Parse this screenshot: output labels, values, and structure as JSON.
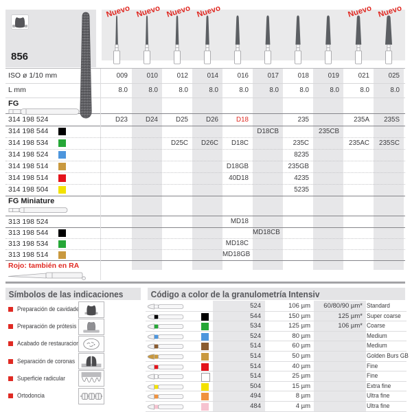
{
  "header": {
    "figure_number": "856",
    "tool_icon": "crown-prep-icon",
    "new_badge": {
      "label": "Nuevo",
      "columns": [
        0,
        1,
        2,
        3,
        8,
        9
      ]
    }
  },
  "size_table": {
    "iso_row": {
      "label": "ISO ø 1/10 mm",
      "values": [
        "009",
        "010",
        "012",
        "014",
        "016",
        "017",
        "018",
        "019",
        "021",
        "025"
      ]
    },
    "length_row": {
      "label": "L mm",
      "values": [
        "8.0",
        "8.0",
        "8.0",
        "8.0",
        "8.0",
        "8.0",
        "8.0",
        "8.0",
        "8.0",
        "8.0"
      ]
    }
  },
  "fg_section": {
    "label": "FG",
    "rows": [
      {
        "code": "314 198 524",
        "color": null,
        "cells": [
          "D23",
          "D24",
          "D25",
          "D26",
          "D18",
          "",
          "235",
          "",
          "235A",
          "235S"
        ],
        "red_cells": [
          4
        ]
      },
      {
        "code": "314 198 544",
        "color": "#000000",
        "cells": [
          "",
          "",
          "",
          "",
          "",
          "D18CB",
          "",
          "235CB",
          "",
          ""
        ]
      },
      {
        "code": "314 198 534",
        "color": "#26a737",
        "cells": [
          "",
          "",
          "D25C",
          "D26C",
          "D18C",
          "",
          "235C",
          "",
          "235AC",
          "235SC"
        ]
      },
      {
        "code": "314 198 524",
        "color": "#4d96dd",
        "cells": [
          "",
          "",
          "",
          "",
          "",
          "",
          "8235",
          "",
          "",
          ""
        ]
      },
      {
        "code": "314 198 514",
        "color": "#c9993f",
        "cells": [
          "",
          "",
          "",
          "",
          "D18GB",
          "",
          "235GB",
          "",
          "",
          ""
        ]
      },
      {
        "code": "314 198 514",
        "color": "#e4131b",
        "cells": [
          "",
          "",
          "",
          "",
          "40D18",
          "",
          "4235",
          "",
          "",
          ""
        ]
      },
      {
        "code": "314 198 504",
        "color": "#f3e200",
        "cells": [
          "",
          "",
          "",
          "",
          "",
          "",
          "5235",
          "",
          "",
          ""
        ]
      }
    ]
  },
  "fg_miniature_section": {
    "label": "FG Miniature",
    "note": "Rojo: también en RA",
    "rows": [
      {
        "code": "313 198 524",
        "color": null,
        "cells": [
          "",
          "",
          "",
          "",
          "MD18",
          "",
          "",
          "",
          "",
          ""
        ]
      },
      {
        "code": "313 198 544",
        "color": "#000000",
        "cells": [
          "",
          "",
          "",
          "",
          "",
          "MD18CB",
          "",
          "",
          "",
          ""
        ]
      },
      {
        "code": "313 198 534",
        "color": "#26a737",
        "cells": [
          "",
          "",
          "",
          "",
          "MD18C",
          "",
          "",
          "",
          "",
          ""
        ]
      },
      {
        "code": "313 198 514",
        "color": "#c9993f",
        "cells": [
          "",
          "",
          "",
          "",
          "MD18GB",
          "",
          "",
          "",
          "",
          ""
        ]
      }
    ]
  },
  "symbols_section": {
    "heading": "Símbolos de las indicaciones",
    "items": [
      {
        "label": "Preparación de cavidades",
        "icon": "cavity-preparation-icon"
      },
      {
        "label": "Preparación de prótesis",
        "icon": "prosthesis-preparation-icon"
      },
      {
        "label": "Acabado de restauraciones",
        "icon": "restoration-finishing-icon"
      },
      {
        "label": "Separación de coronas",
        "icon": "crown-separation-icon"
      },
      {
        "label": "Superficie radicular",
        "icon": "root-surface-icon"
      },
      {
        "label": "Ortodoncia",
        "icon": "orthodontics-icon"
      }
    ]
  },
  "granulometry_section": {
    "heading": "Código a color de la granulometría Intensiv",
    "rows": [
      {
        "color": null,
        "icon_variant": "plain",
        "code": "524",
        "grain": "106 µm",
        "alt_grain": "60/80/90 µm*",
        "name": "Standard"
      },
      {
        "color": "#000000",
        "icon_variant": "band",
        "code": "544",
        "grain": "150 µm",
        "alt_grain": "125 µm*",
        "name": "Super coarse"
      },
      {
        "color": "#26a737",
        "icon_variant": "band",
        "code": "534",
        "grain": "125 µm",
        "alt_grain": "106 µm*",
        "name": "Coarse"
      },
      {
        "color": "#4d96dd",
        "icon_variant": "band",
        "code": "524",
        "grain": "80 µm",
        "alt_grain": "",
        "name": "Medium"
      },
      {
        "color": "#8a5c30",
        "icon_variant": "band",
        "code": "514",
        "grain": "60 µm",
        "alt_grain": "",
        "name": "Medium"
      },
      {
        "color": "#c9993f",
        "icon_variant": "golden-head",
        "code": "514",
        "grain": "50 µm",
        "alt_grain": "",
        "name": "Golden Burs GB"
      },
      {
        "color": "#e4131b",
        "icon_variant": "band",
        "code": "514",
        "grain": "40 µm",
        "alt_grain": "",
        "name": "Fine"
      },
      {
        "color": "#ffffff",
        "icon_variant": "band",
        "code": "514",
        "grain": "25 µm",
        "alt_grain": "",
        "name": "Fine"
      },
      {
        "color": "#f3e200",
        "icon_variant": "band",
        "code": "504",
        "grain": "15 µm",
        "alt_grain": "",
        "name": "Extra fine"
      },
      {
        "color": "#f0923f",
        "icon_variant": "band",
        "code": "494",
        "grain": "8 µm",
        "alt_grain": "",
        "name": "Ultra fine"
      },
      {
        "color": "#f6c3d0",
        "icon_variant": "band",
        "code": "484",
        "grain": "4 µm",
        "alt_grain": "",
        "name": "Ultra fine"
      }
    ]
  },
  "accent_colors": {
    "red": "#e02a23",
    "panel_gray": "#e4e4e6",
    "stripe_gray": "#e7e7e9"
  }
}
